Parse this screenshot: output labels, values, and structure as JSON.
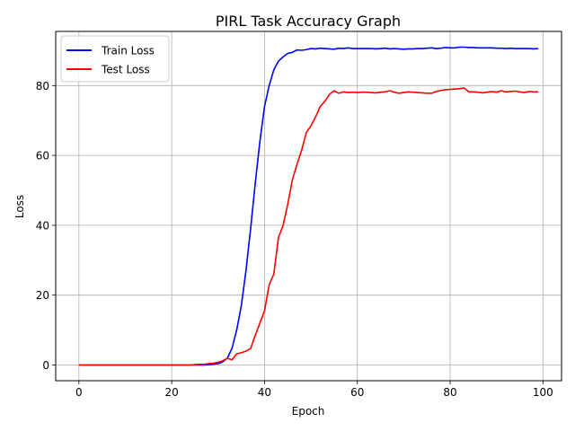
{
  "chart_data": {
    "type": "line",
    "title": "PIRL Task Accuracy Graph",
    "xlabel": "Epoch",
    "ylabel": "Loss",
    "xlim": [
      -5,
      104
    ],
    "ylim": [
      -4.5,
      95.5
    ],
    "xticks": [
      0,
      20,
      40,
      60,
      80,
      100
    ],
    "yticks": [
      0,
      20,
      40,
      60,
      80
    ],
    "grid": true,
    "legend_position": "top-left",
    "x": [
      0,
      1,
      2,
      3,
      4,
      5,
      6,
      7,
      8,
      9,
      10,
      11,
      12,
      13,
      14,
      15,
      16,
      17,
      18,
      19,
      20,
      21,
      22,
      23,
      24,
      25,
      26,
      27,
      28,
      29,
      30,
      31,
      32,
      33,
      34,
      35,
      36,
      37,
      38,
      39,
      40,
      41,
      42,
      43,
      44,
      45,
      46,
      47,
      48,
      49,
      50,
      51,
      52,
      53,
      54,
      55,
      56,
      57,
      58,
      59,
      60,
      61,
      62,
      63,
      64,
      65,
      66,
      67,
      68,
      69,
      70,
      71,
      72,
      73,
      74,
      75,
      76,
      77,
      78,
      79,
      80,
      81,
      82,
      83,
      84,
      85,
      86,
      87,
      88,
      89,
      90,
      91,
      92,
      93,
      94,
      95,
      96,
      97,
      98,
      99
    ],
    "series": [
      {
        "name": "Train Loss",
        "color": "#0000ff",
        "values": [
          0,
          0,
          0,
          0,
          0,
          0,
          0,
          0,
          0,
          0,
          0,
          0,
          0,
          0,
          0,
          0,
          0,
          0,
          0,
          0,
          0,
          0,
          0,
          0,
          0,
          0,
          0,
          0,
          0.1,
          0.2,
          0.4,
          0.9,
          2,
          4.8,
          10,
          17,
          27,
          39,
          52,
          64,
          74,
          80,
          84.5,
          87,
          88.2,
          89.2,
          89.5,
          90.2,
          90.1,
          90.3,
          90.6,
          90.5,
          90.7,
          90.6,
          90.5,
          90.4,
          90.7,
          90.6,
          90.8,
          90.6,
          90.6,
          90.6,
          90.6,
          90.6,
          90.5,
          90.6,
          90.7,
          90.5,
          90.6,
          90.5,
          90.4,
          90.5,
          90.5,
          90.6,
          90.6,
          90.7,
          90.8,
          90.6,
          90.7,
          90.9,
          90.8,
          90.8,
          91.0,
          91.0,
          90.9,
          90.9,
          90.8,
          90.8,
          90.8,
          90.8,
          90.7,
          90.7,
          90.6,
          90.7,
          90.6,
          90.6,
          90.6,
          90.6,
          90.5,
          90.6
        ]
      },
      {
        "name": "Test Loss",
        "color": "#ff0000",
        "values": [
          0,
          0,
          0,
          0,
          0,
          0,
          0,
          0,
          0,
          0,
          0,
          0,
          0,
          0,
          0,
          0,
          0,
          0,
          0,
          0,
          0,
          0,
          0,
          0,
          0,
          0.1,
          0.2,
          0.2,
          0.4,
          0.5,
          0.8,
          1.2,
          1.9,
          1.5,
          3.2,
          3.5,
          4,
          4.7,
          8.5,
          12,
          15.5,
          23,
          26,
          36.5,
          40,
          46,
          53,
          57.5,
          61.5,
          66.5,
          68.5,
          71,
          74,
          75.5,
          77.5,
          78.5,
          77.8,
          78.2,
          78,
          78.1,
          78,
          78.1,
          78.1,
          78,
          77.9,
          78.1,
          78.2,
          78.5,
          78.1,
          77.8,
          78,
          78.2,
          78.1,
          78,
          77.9,
          77.8,
          77.8,
          78.3,
          78.6,
          78.8,
          78.9,
          79.0,
          79.1,
          79.3,
          78.2,
          78.2,
          78.1,
          77.9,
          78.1,
          78.3,
          78.1,
          78.5,
          78.2,
          78.3,
          78.4,
          78.2,
          78,
          78.3,
          78.2,
          78.2
        ]
      }
    ]
  }
}
